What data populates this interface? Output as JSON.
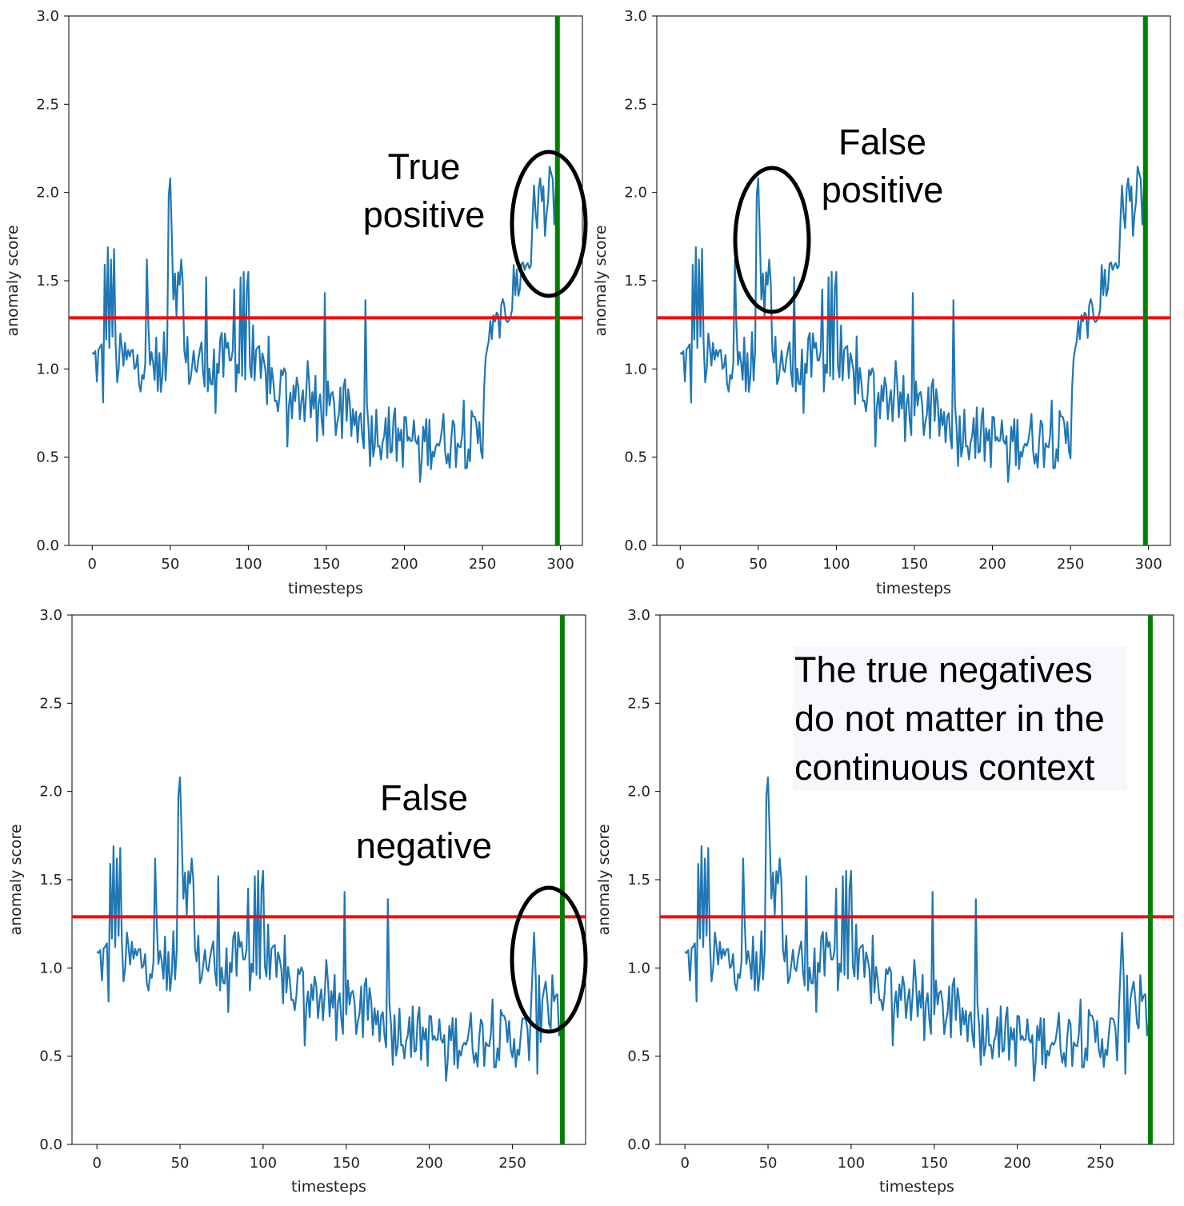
{
  "chart_data": [
    {
      "type": "line",
      "panel": "top-left",
      "xlabel": "timesteps",
      "ylabel": "anomaly score",
      "xlim": [
        -15,
        314
      ],
      "ylim": [
        0,
        3.0
      ],
      "xticks": [
        "0",
        "50",
        "100",
        "150",
        "200",
        "250",
        "300"
      ],
      "yticks": [
        "0.0",
        "0.5",
        "1.0",
        "1.5",
        "2.0",
        "2.5",
        "3.0"
      ],
      "grid": false,
      "threshold": 1.29,
      "event_x": 298,
      "series_end": 298,
      "series_color": "#1f77b4",
      "threshold_color": "#ff0000",
      "event_color": "#008000",
      "annotation": [
        "True",
        "positive"
      ],
      "highlight": "true-positive"
    },
    {
      "type": "line",
      "panel": "top-right",
      "xlabel": "timesteps",
      "ylabel": "anomaly score",
      "xlim": [
        -15,
        314
      ],
      "ylim": [
        0,
        3.0
      ],
      "xticks": [
        "0",
        "50",
        "100",
        "150",
        "200",
        "250",
        "300"
      ],
      "yticks": [
        "0.0",
        "0.5",
        "1.0",
        "1.5",
        "2.0",
        "2.5",
        "3.0"
      ],
      "grid": false,
      "threshold": 1.29,
      "event_x": 298,
      "series_end": 298,
      "series_color": "#1f77b4",
      "threshold_color": "#ff0000",
      "event_color": "#008000",
      "annotation": [
        "False",
        "positive"
      ],
      "highlight": "false-positive"
    },
    {
      "type": "line",
      "panel": "bottom-left",
      "xlabel": "timesteps",
      "ylabel": "anomaly score",
      "xlim": [
        -15,
        294
      ],
      "ylim": [
        0,
        3.0
      ],
      "xticks": [
        "0",
        "50",
        "100",
        "150",
        "200",
        "250"
      ],
      "yticks": [
        "0.0",
        "0.5",
        "1.0",
        "1.5",
        "2.0",
        "2.5",
        "3.0"
      ],
      "grid": false,
      "threshold": 1.29,
      "event_x": 280,
      "series_end": 280,
      "series_color": "#1f77b4",
      "threshold_color": "#ff0000",
      "event_color": "#008000",
      "annotation": [
        "False",
        "negative"
      ],
      "highlight": "false-negative"
    },
    {
      "type": "line",
      "panel": "bottom-right",
      "xlabel": "timesteps",
      "ylabel": "anomaly score",
      "xlim": [
        -15,
        294
      ],
      "ylim": [
        0,
        3.0
      ],
      "xticks": [
        "0",
        "50",
        "100",
        "150",
        "200",
        "250"
      ],
      "yticks": [
        "0.0",
        "0.5",
        "1.0",
        "1.5",
        "2.0",
        "2.5",
        "3.0"
      ],
      "grid": false,
      "threshold": 1.29,
      "event_x": 280,
      "series_end": 280,
      "series_color": "#1f77b4",
      "threshold_color": "#ff0000",
      "event_color": "#008000",
      "annotation": [
        "The true negatives",
        "do not matter in the",
        "continuous context"
      ],
      "highlight": "none"
    }
  ]
}
